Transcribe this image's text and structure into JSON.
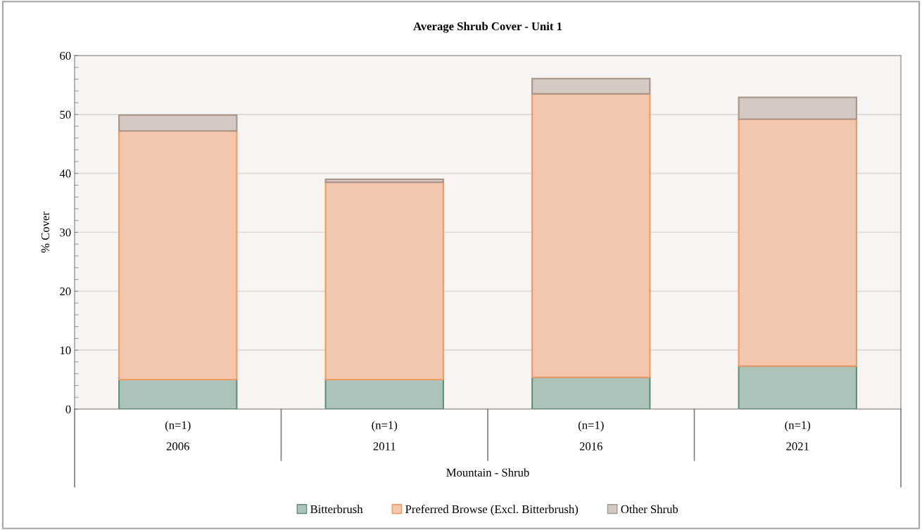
{
  "chart_data": {
    "type": "bar",
    "stacked": true,
    "title": "Average Shrub Cover - Unit 1",
    "xlabel": "Mountain - Shrub",
    "ylabel": "% Cover",
    "categories": [
      "(n=1)\n2006",
      "(n=1)\n2011",
      "(n=1)\n2016",
      "(n=1)\n2021"
    ],
    "series": [
      {
        "name": "Bitterbrush",
        "color": "#adc3b9",
        "values": [
          5.0,
          5.0,
          5.4,
          7.3
        ]
      },
      {
        "name": "Preferred Browse (Excl. Bitterbrush)",
        "color": "#f3c6ae",
        "values": [
          42.2,
          33.5,
          48.1,
          41.9
        ]
      },
      {
        "name": "Other Shrub",
        "color": "#d4c9c3",
        "values": [
          2.7,
          0.5,
          2.6,
          3.7
        ]
      }
    ],
    "ylim": [
      0,
      60
    ],
    "yticks": [
      0,
      10,
      20,
      30,
      40,
      50,
      60
    ],
    "grid": "y",
    "legend": "bottom"
  }
}
